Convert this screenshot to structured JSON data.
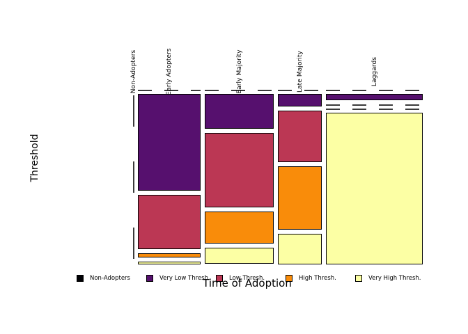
{
  "chart_data": {
    "type": "mosaic",
    "title": "",
    "xlabel": "Time of Adoption",
    "ylabel": "Threshold",
    "x_categories": [
      "Non-Adopters",
      "Early Adopters",
      "Early Majority",
      "Late Majority",
      "Laggards"
    ],
    "y_categories": [
      "Non-Adopters",
      "Very Low Thresh.",
      "Low Thresh.",
      "High Thresh.",
      "Very High Thresh."
    ],
    "colors": [
      "#000004",
      "#56106E",
      "#BB3754",
      "#F98C0A",
      "#FCFFA4"
    ],
    "column_width_shares": [
      0.0,
      0.23,
      0.253,
      0.161,
      0.356
    ],
    "cell_height_shares": [
      [
        0.0,
        0.0,
        0.0,
        0.0,
        0.0
      ],
      [
        0.0,
        0.612,
        0.345,
        0.026,
        0.017
      ],
      [
        0.0,
        0.221,
        0.473,
        0.203,
        0.103
      ],
      [
        0.0,
        0.08,
        0.326,
        0.402,
        0.192
      ],
      [
        0.0,
        0.04,
        0.0,
        0.0,
        0.96
      ]
    ],
    "zero_cells_rendered_as": "dashed lines",
    "legend": {
      "position": "bottom",
      "items": [
        {
          "label": "Non-Adopters",
          "color": "#000004"
        },
        {
          "label": "Very Low Thresh.",
          "color": "#56106E"
        },
        {
          "label": "Low Thresh.",
          "color": "#BB3754"
        },
        {
          "label": "High Thresh.",
          "color": "#F98C0A"
        },
        {
          "label": "Very High Thresh.",
          "color": "#FCFFA4"
        }
      ]
    }
  }
}
